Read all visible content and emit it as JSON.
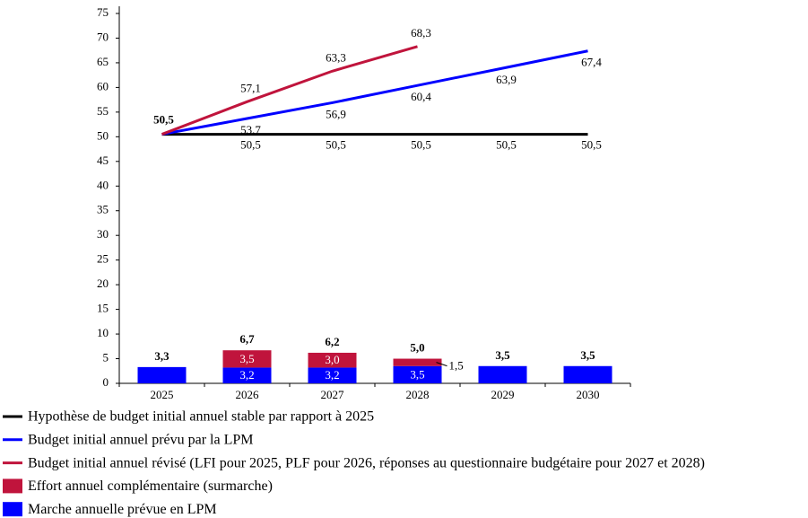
{
  "chart_data": {
    "type": "combo",
    "categories": [
      "2025",
      "2026",
      "2027",
      "2028",
      "2029",
      "2030"
    ],
    "ylim": [
      0,
      75
    ],
    "yticks": [
      0,
      5,
      10,
      15,
      20,
      25,
      30,
      35,
      40,
      45,
      50,
      55,
      60,
      65,
      70,
      75
    ],
    "series": [
      {
        "name": "Hypothèse de budget initial annuel stable par rapport à 2025",
        "type": "line",
        "color": "#000000",
        "values": [
          50.5,
          50.5,
          50.5,
          50.5,
          50.5,
          50.5
        ],
        "value_labels": [
          "50,5",
          "50,5",
          "50,5",
          "50,5",
          "50,5",
          "50,5"
        ]
      },
      {
        "name": "Budget initial annuel prévu par la LPM",
        "type": "line",
        "color": "#0000ff",
        "values": [
          50.5,
          53.7,
          56.9,
          60.4,
          63.9,
          67.4
        ],
        "value_labels": [
          null,
          "53,7",
          "56,9",
          "60,4",
          "63,9",
          "67,4"
        ]
      },
      {
        "name": "Budget initial annuel révisé (LFI pour 2025, PLF pour 2026, réponses au questionnaire budgétaire pour 2027 et 2028)",
        "type": "line",
        "color": "#c0143c",
        "values": [
          50.5,
          57.1,
          63.3,
          68.3,
          null,
          null
        ],
        "value_labels": [
          null,
          "57,1",
          "63,3",
          "68,3",
          null,
          null
        ]
      },
      {
        "name": "Effort annuel complémentaire (surmarche)",
        "type": "bar",
        "color": "#c0143c",
        "values": [
          null,
          3.5,
          3.0,
          1.5,
          null,
          null
        ],
        "value_labels": [
          null,
          "3,5",
          "3,0",
          "1,5",
          null,
          null
        ]
      },
      {
        "name": "Marche annuelle prévue en LPM",
        "type": "bar",
        "color": "#0000ff",
        "values": [
          3.3,
          3.2,
          3.2,
          3.5,
          3.5,
          3.5
        ],
        "value_labels": [
          null,
          "3,2",
          "3,2",
          "3,5",
          null,
          null
        ]
      }
    ],
    "totals": {
      "values": [
        3.3,
        6.7,
        6.2,
        5.0,
        3.5,
        3.5
      ],
      "value_labels": [
        "3,3",
        "6,7",
        "6,2",
        "5,0",
        "3,5",
        "3,5"
      ]
    }
  }
}
